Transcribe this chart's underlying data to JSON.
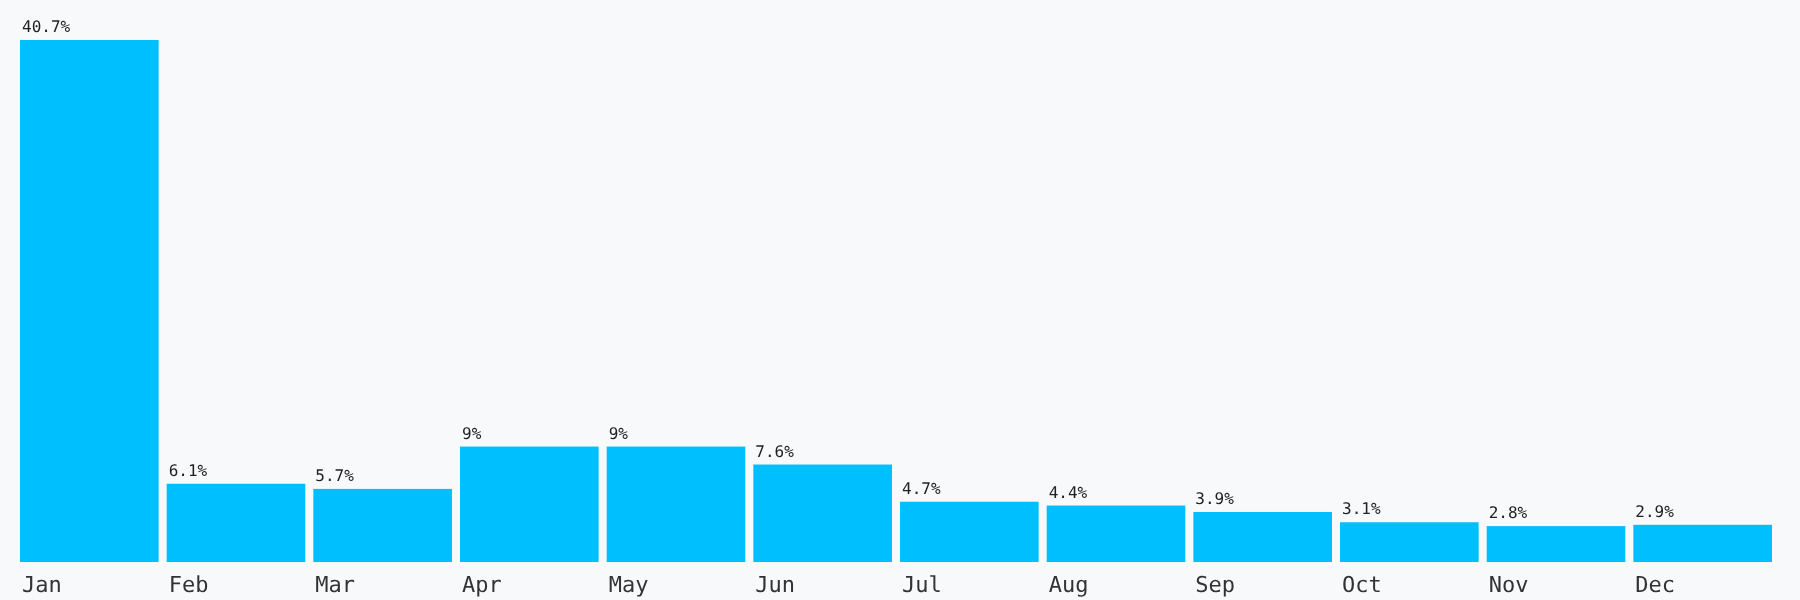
{
  "chart_data": {
    "type": "bar",
    "categories": [
      "Jan",
      "Feb",
      "Mar",
      "Apr",
      "May",
      "Jun",
      "Jul",
      "Aug",
      "Sep",
      "Oct",
      "Nov",
      "Dec"
    ],
    "values": [
      40.7,
      6.1,
      5.7,
      9,
      9,
      7.6,
      4.7,
      4.4,
      3.9,
      3.1,
      2.8,
      2.9
    ],
    "value_labels": [
      "40.7%",
      "6.1%",
      "5.7%",
      "9%",
      "9%",
      "7.6%",
      "4.7%",
      "4.4%",
      "3.9%",
      "3.1%",
      "2.8%",
      "2.9%"
    ],
    "color": "#00bfff"
  }
}
